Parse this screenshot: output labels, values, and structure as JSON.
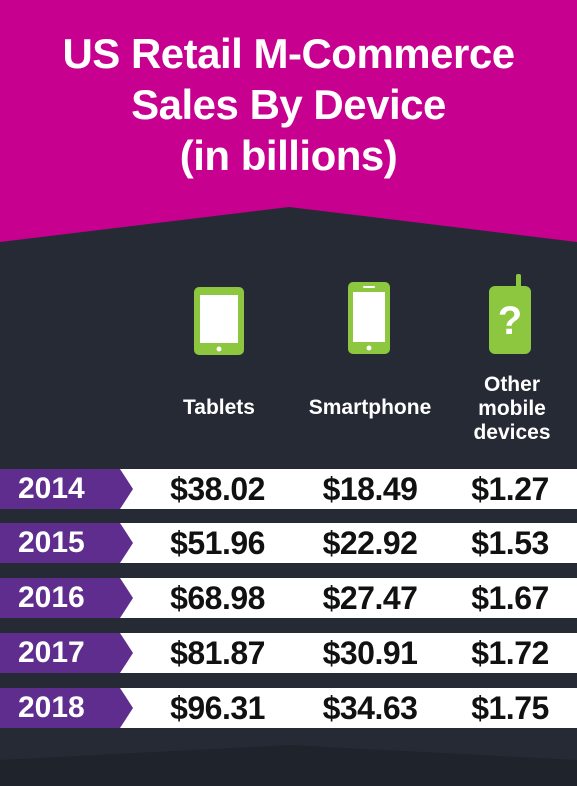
{
  "chart_data": {
    "type": "table",
    "title": "US Retail M-Commerce Sales By Device (in billions)",
    "title_lines": [
      "US Retail M-Commerce",
      "Sales By Device",
      "(in billions)"
    ],
    "columns": [
      {
        "label": "Tablets",
        "lines": [
          "Tablets"
        ],
        "icon": "tablet-icon"
      },
      {
        "label": "Smartphone",
        "lines": [
          "Smartphone"
        ],
        "icon": "smartphone-icon"
      },
      {
        "label": "Other mobile devices",
        "lines": [
          "Other",
          "mobile",
          "devices"
        ],
        "icon": "question-phone-icon"
      }
    ],
    "rows": [
      {
        "year": "2014",
        "values": [
          "$38.02",
          "$18.49",
          "$1.27"
        ]
      },
      {
        "year": "2015",
        "values": [
          "$51.96",
          "$22.92",
          "$1.53"
        ]
      },
      {
        "year": "2016",
        "values": [
          "$68.98",
          "$27.47",
          "$1.67"
        ]
      },
      {
        "year": "2017",
        "values": [
          "$81.87",
          "$30.91",
          "$1.72"
        ]
      },
      {
        "year": "2018",
        "values": [
          "$96.31",
          "$34.63",
          "$1.75"
        ]
      }
    ],
    "series": [
      {
        "name": "Tablets",
        "values": [
          38.02,
          51.96,
          68.98,
          81.87,
          96.31
        ]
      },
      {
        "name": "Smartphone",
        "values": [
          18.49,
          22.92,
          27.47,
          30.91,
          34.63
        ]
      },
      {
        "name": "Other mobile devices",
        "values": [
          1.27,
          1.53,
          1.67,
          1.72,
          1.75
        ]
      }
    ],
    "categories": [
      "2014",
      "2015",
      "2016",
      "2017",
      "2018"
    ]
  },
  "colors": {
    "header_magenta": "#c8008f",
    "background_dark": "#252a34",
    "year_purple": "#5f2d8e",
    "icon_green": "#8dc63f",
    "row_white": "#ffffff"
  }
}
